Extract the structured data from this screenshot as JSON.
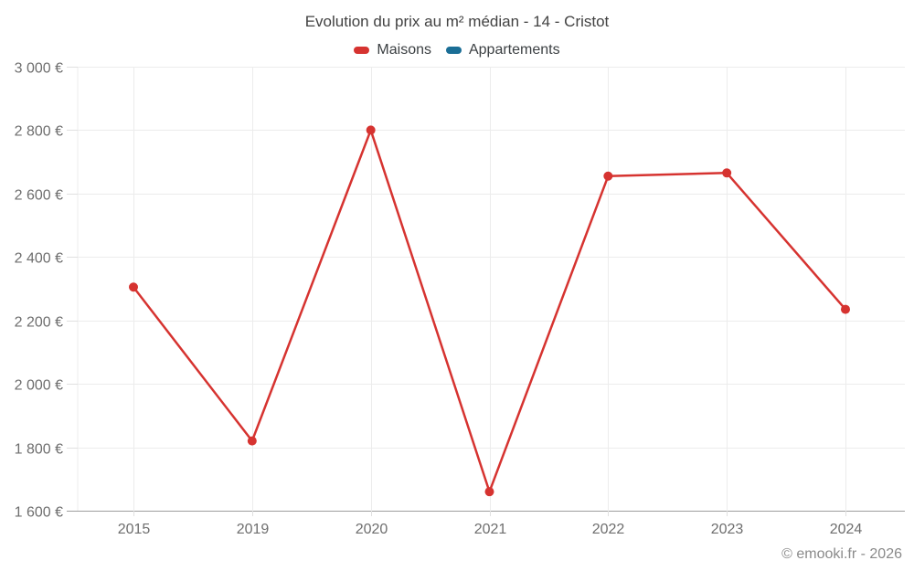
{
  "title": "Evolution du prix au m² médian - 14 - Cristot",
  "footer": "© emooki.fr - 2026",
  "legend": [
    {
      "label": "Maisons",
      "color": "#d63330"
    },
    {
      "label": "Appartements",
      "color": "#1a6e96"
    }
  ],
  "chart_data": {
    "type": "line",
    "title": "Evolution du prix au m² médian - 14 - Cristot",
    "categories": [
      "2015",
      "2019",
      "2020",
      "2021",
      "2022",
      "2023",
      "2024"
    ],
    "series": [
      {
        "name": "Maisons",
        "color": "#d63330",
        "values": [
          2305,
          1820,
          2800,
          1660,
          2655,
          2665,
          2235
        ]
      },
      {
        "name": "Appartements",
        "color": "#1a6e96",
        "values": []
      }
    ],
    "ylim": [
      1600,
      3000
    ],
    "ytick_step": 200,
    "ytick_labels": [
      "1 600 €",
      "1 800 €",
      "2 000 €",
      "2 200 €",
      "2 400 €",
      "2 600 €",
      "2 800 €",
      "3 000 €"
    ],
    "xlabel": "",
    "ylabel": "",
    "grid": true,
    "legend_position": "top",
    "currency": "€"
  }
}
